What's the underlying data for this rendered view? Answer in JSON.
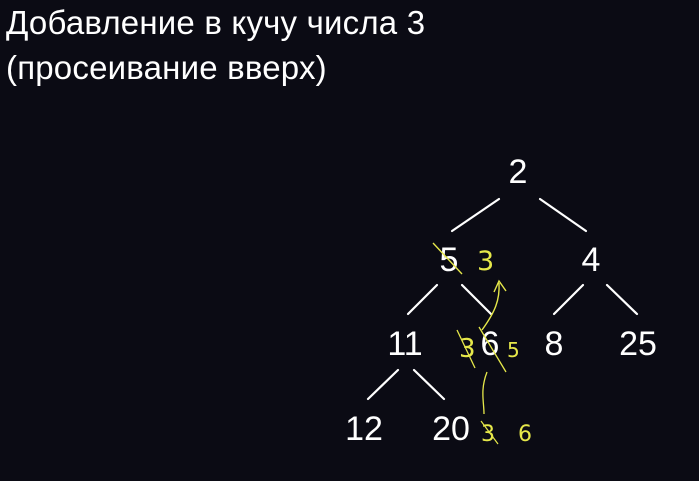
{
  "title_line1": "Добавление в кучу числа 3",
  "title_line2": "(просеивание вверх)",
  "colors": {
    "background": "#0b0b14",
    "text": "#ffffff",
    "annotation": "#e6e84a"
  },
  "tree": {
    "root": "2",
    "level1": [
      "5",
      "4"
    ],
    "level2": [
      "11",
      "6",
      "8",
      "25"
    ],
    "level3": [
      "12",
      "20"
    ]
  },
  "annotations": {
    "swap_top": "3",
    "swap_middle": "5",
    "new_value": "3",
    "new_value_replaced": "6"
  }
}
